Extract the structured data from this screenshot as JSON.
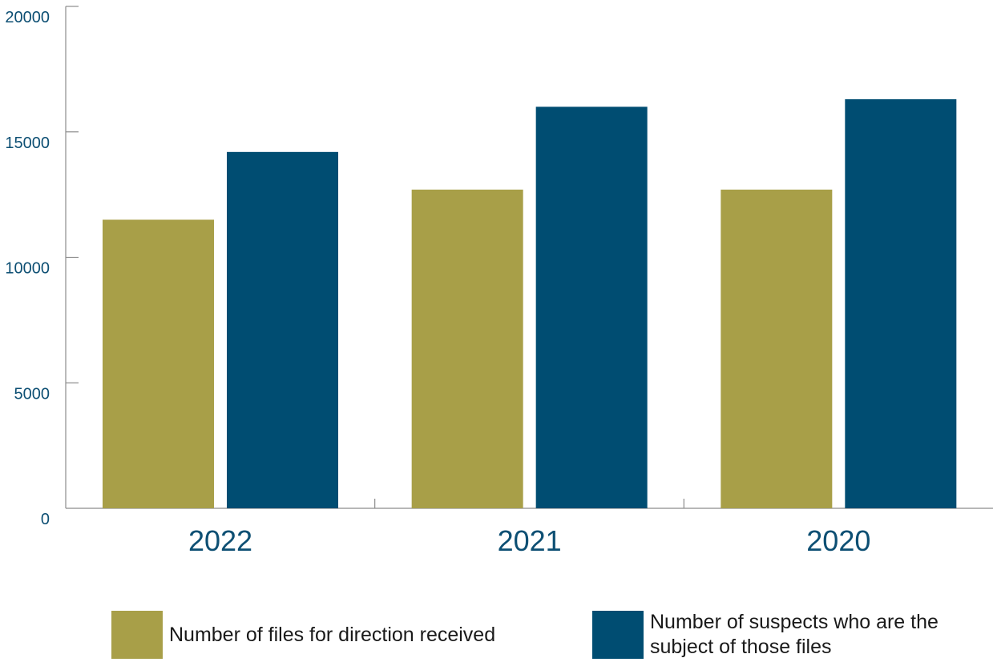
{
  "chart_data": {
    "type": "bar",
    "categories": [
      "2022",
      "2021",
      "2020"
    ],
    "series": [
      {
        "name": "Number of files for direction received",
        "values": [
          11500,
          12700,
          12700
        ],
        "color": "#a89f48"
      },
      {
        "name": "Number of suspects who are the subject of those files",
        "values": [
          14200,
          16000,
          16300
        ],
        "color": "#004d72"
      }
    ],
    "ylim": [
      0,
      20000
    ],
    "yticks": [
      0,
      5000,
      10000,
      15000,
      20000
    ],
    "ytick_labels": [
      "0",
      "5000",
      "10000",
      "15000",
      "20000"
    ],
    "title": "",
    "xlabel": "",
    "ylabel": "",
    "grid": false,
    "legend_position": "bottom"
  }
}
